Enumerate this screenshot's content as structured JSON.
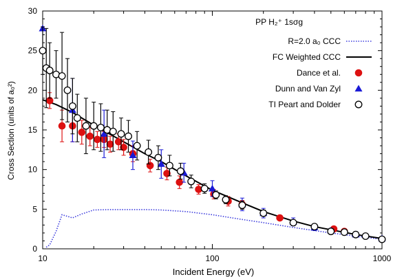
{
  "chart_data": {
    "type": "scatter",
    "title": "",
    "annotation_prefix": "PP",
    "annotation_state": "H₂⁺ 1sσg",
    "xlabel": "Incident Energy (eV)",
    "ylabel": "Cross Section (units of a₀²)",
    "xscale": "log",
    "xlim": [
      10,
      1000
    ],
    "ylim": [
      0,
      30
    ],
    "x_ticks": [
      10,
      100,
      1000
    ],
    "x_tick_labels": [
      "10",
      "100",
      "1000"
    ],
    "y_ticks": [
      0,
      5,
      10,
      15,
      20,
      25,
      30
    ],
    "y_tick_labels": [
      "0",
      "5",
      "10",
      "15",
      "20",
      "25",
      "30"
    ],
    "legend_position": "top-right",
    "series": [
      {
        "name": "R=2.0 a₀ CCC",
        "style": "dotted-line",
        "color": "#3b3bdd",
        "x": [
          10.5,
          11,
          12,
          13,
          15,
          17,
          20,
          25,
          30,
          40,
          50,
          70,
          100,
          150,
          200,
          300,
          400,
          500,
          700,
          1000
        ],
        "y": [
          0.2,
          0.5,
          2.2,
          4.3,
          3.9,
          4.4,
          4.9,
          4.95,
          4.95,
          4.95,
          4.9,
          4.7,
          4.3,
          3.7,
          3.3,
          2.7,
          2.3,
          2.0,
          1.6,
          1.2
        ]
      },
      {
        "name": "FC Weighted CCC",
        "style": "solid-line",
        "color": "#000000",
        "x": [
          10,
          12,
          15,
          20,
          30,
          40,
          50,
          70,
          100,
          150,
          200,
          300,
          400,
          500,
          700,
          1000
        ],
        "y": [
          18.8,
          18.2,
          17.2,
          15.6,
          13.5,
          12.0,
          11.0,
          9.2,
          7.4,
          5.8,
          4.7,
          3.5,
          2.8,
          2.4,
          1.8,
          1.3
        ]
      },
      {
        "name": "Dance et al.",
        "style": "filled-circle",
        "color": "#dd1111",
        "x": [
          11,
          13,
          15,
          17,
          19,
          21,
          23,
          25,
          28,
          30,
          34,
          43,
          54,
          64,
          83,
          102,
          124,
          150,
          250,
          520,
          600
        ],
        "y": [
          18.7,
          15.5,
          15.5,
          14.7,
          14.2,
          13.8,
          13.8,
          13.2,
          13.5,
          12.8,
          12.0,
          10.5,
          9.5,
          8.4,
          7.5,
          6.9,
          6.0,
          5.6,
          3.9,
          2.5,
          2.2
        ],
        "err": [
          1.0,
          2.0,
          2.0,
          1.5,
          1.2,
          1.0,
          1.0,
          1.0,
          1.0,
          1.0,
          1.0,
          0.8,
          0.8,
          0.8,
          0.6,
          0.6,
          0.6,
          0.5,
          0.3,
          0.3,
          0.3
        ]
      },
      {
        "name": "Dunn and Van Zyl",
        "style": "filled-triangle",
        "color": "#1a1ad6",
        "x": [
          10,
          15,
          23,
          34,
          50,
          68,
          100,
          150,
          200,
          300,
          400,
          500,
          700,
          1000
        ],
        "y": [
          27.8,
          17.5,
          14.5,
          11.8,
          10.7,
          9.6,
          7.6,
          5.6,
          4.5,
          3.4,
          2.7,
          2.3,
          1.8,
          1.3
        ],
        "err": [
          0,
          4.0,
          3.0,
          1.8,
          1.8,
          1.2,
          1.0,
          0.8,
          0.6,
          0.5,
          0.4,
          0.3,
          0.3,
          0.2
        ]
      },
      {
        "name": "TI Peart and Dolder",
        "style": "open-circle",
        "color": "#000000",
        "x": [
          10,
          10.5,
          11,
          12,
          13,
          14,
          15,
          16,
          18,
          20,
          22,
          24,
          26,
          29,
          32,
          36,
          42,
          48,
          56,
          65,
          75,
          90,
          105,
          120,
          150,
          200,
          300,
          400,
          500,
          600,
          700,
          800,
          1000
        ],
        "y": [
          25.0,
          22.8,
          22.5,
          22.0,
          21.8,
          20.0,
          18.0,
          16.5,
          15.5,
          15.5,
          15.3,
          15.0,
          14.8,
          14.5,
          14.2,
          13.0,
          12.2,
          11.5,
          10.5,
          9.8,
          8.5,
          7.6,
          6.8,
          6.2,
          5.5,
          4.5,
          3.3,
          2.8,
          2.2,
          2.1,
          1.8,
          1.6,
          1.2
        ],
        "err": [
          3.0,
          5.0,
          3.5,
          3.0,
          5.5,
          4.0,
          3.5,
          3.0,
          3.5,
          3.0,
          3.0,
          2.5,
          2.5,
          2.0,
          2.0,
          1.8,
          1.5,
          1.5,
          1.3,
          1.0,
          0.8,
          0.6,
          0.5,
          0.5,
          0.5,
          0.4,
          0.3,
          0.3,
          0.3,
          0.3,
          0.2,
          0.2,
          0.2
        ]
      }
    ]
  }
}
